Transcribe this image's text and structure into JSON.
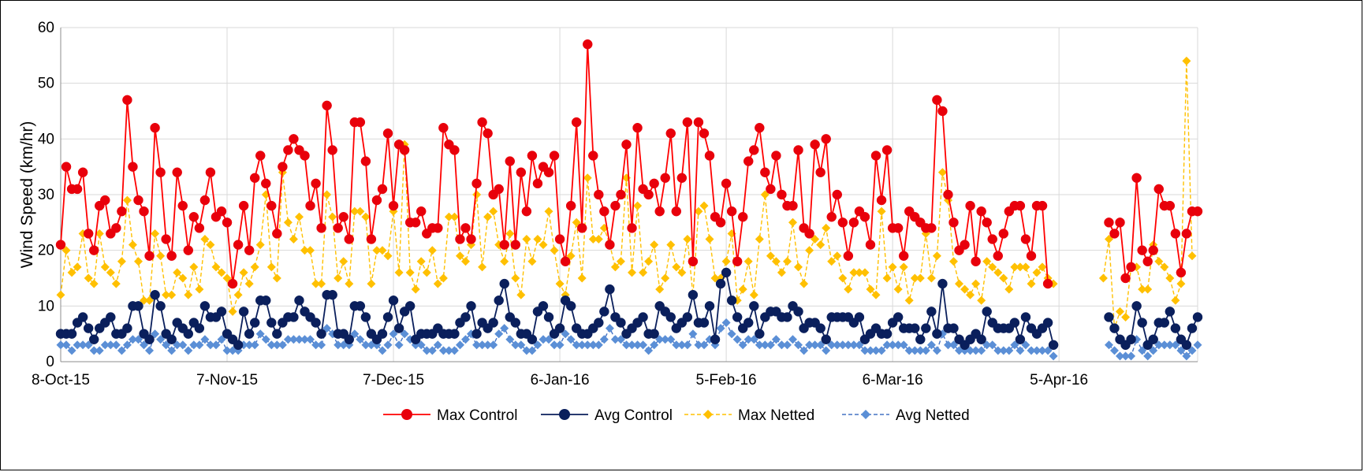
{
  "chart_data": {
    "type": "line",
    "title": "",
    "xlabel": "",
    "ylabel": "Wind Speed (km/hr)",
    "ylim": [
      0,
      60
    ],
    "yticks": [
      0,
      10,
      20,
      30,
      40,
      50,
      60
    ],
    "xlim": [
      "2015-10-08",
      "2016-04-30"
    ],
    "xticks": [
      {
        "date": "2015-10-08",
        "label": "8-Oct-15"
      },
      {
        "date": "2015-11-07",
        "label": "7-Nov-15"
      },
      {
        "date": "2015-12-07",
        "label": "7-Dec-15"
      },
      {
        "date": "2016-01-06",
        "label": "6-Jan-16"
      },
      {
        "date": "2016-02-05",
        "label": "5-Feb-16"
      },
      {
        "date": "2016-03-06",
        "label": "6-Mar-16"
      },
      {
        "date": "2016-04-05",
        "label": "5-Apr-16"
      }
    ],
    "grid": "vertical at x ticks, horizontal at y ticks",
    "legend_position": "bottom",
    "start_date": "2015-10-08",
    "series": [
      {
        "name": "Max Control",
        "color": "#ff0000",
        "marker_color": "#e8000b",
        "line_style": "solid",
        "marker": "circle",
        "segments": [
          {
            "start": "2015-10-08",
            "values": [
              21,
              35,
              31,
              31,
              34,
              23,
              20,
              28,
              29,
              23,
              24,
              27,
              47,
              35,
              29,
              27,
              19,
              42,
              34,
              22,
              19,
              34,
              28,
              20,
              26,
              24,
              29,
              34,
              26,
              27,
              25,
              14,
              21,
              28,
              20,
              33,
              37,
              32,
              28,
              23,
              35,
              38,
              40,
              38,
              37,
              28,
              32,
              24,
              46,
              38,
              24,
              26,
              22,
              43,
              43,
              36,
              22,
              29,
              31,
              41,
              28,
              39,
              38,
              25,
              25,
              27,
              23,
              24,
              24,
              42,
              39,
              38,
              22,
              24,
              22,
              32,
              43,
              41,
              30,
              31,
              21,
              36,
              21,
              34,
              27,
              37,
              32,
              35,
              34,
              37,
              22,
              18,
              28,
              43,
              24,
              57,
              37,
              30,
              27,
              21,
              28,
              30,
              39,
              24,
              42,
              31,
              30,
              32,
              27,
              33,
              41,
              27,
              33,
              43,
              18,
              43,
              41,
              37,
              26,
              25,
              32,
              27,
              18,
              26,
              36,
              38,
              42,
              34,
              31,
              37,
              30,
              28,
              28,
              38,
              24,
              23,
              39,
              34,
              40,
              26,
              30,
              25,
              19,
              25,
              27,
              26,
              21,
              37,
              29,
              38,
              24,
              24,
              19,
              27,
              26,
              25,
              24,
              24,
              47,
              45,
              30,
              25,
              20,
              21,
              28,
              18,
              27,
              25,
              22,
              19,
              23,
              27,
              28,
              28,
              22,
              19,
              28,
              28,
              14
            ]
          },
          {
            "start": "2016-04-14",
            "values": [
              25,
              23,
              25,
              15,
              17,
              33,
              20,
              18,
              20,
              31,
              28,
              28,
              23,
              16,
              23,
              27,
              27
            ]
          }
        ]
      },
      {
        "name": "Avg Control",
        "color": "#0a1f5c",
        "marker_color": "#0a1f5c",
        "line_style": "solid",
        "marker": "circle",
        "segments": [
          {
            "start": "2015-10-08",
            "values": [
              5,
              5,
              5,
              7,
              8,
              6,
              4,
              6,
              7,
              8,
              5,
              5,
              6,
              10,
              10,
              5,
              4,
              12,
              10,
              5,
              4,
              7,
              6,
              5,
              7,
              6,
              10,
              8,
              8,
              9,
              5,
              4,
              3,
              9,
              5,
              7,
              11,
              11,
              7,
              5,
              7,
              8,
              8,
              11,
              9,
              8,
              7,
              5,
              12,
              12,
              5,
              5,
              4,
              10,
              10,
              8,
              5,
              4,
              5,
              8,
              11,
              6,
              9,
              10,
              4,
              5,
              5,
              5,
              6,
              5,
              5,
              5,
              7,
              8,
              10,
              5,
              7,
              6,
              7,
              11,
              14,
              8,
              7,
              5,
              5,
              4,
              9,
              10,
              8,
              5,
              6,
              11,
              10,
              6,
              5,
              5,
              6,
              7,
              9,
              13,
              8,
              7,
              5,
              6,
              7,
              8,
              5,
              5,
              10,
              9,
              8,
              6,
              7,
              8,
              12,
              7,
              7,
              10,
              4,
              14,
              16,
              11,
              8,
              6,
              7,
              10,
              5,
              8,
              9,
              9,
              8,
              8,
              10,
              9,
              6,
              7,
              7,
              6,
              4,
              8,
              8,
              8,
              8,
              7,
              8,
              4,
              5,
              6,
              5,
              5,
              7,
              8,
              6,
              6,
              6,
              4,
              6,
              9,
              5,
              14,
              6,
              6,
              4,
              3,
              4,
              5,
              4,
              9,
              7,
              6,
              6,
              6,
              7,
              4,
              8,
              6,
              5,
              6,
              7,
              3
            ]
          },
          {
            "start": "2016-04-14",
            "values": [
              8,
              6,
              4,
              3,
              4,
              10,
              7,
              3,
              4,
              7,
              7,
              9,
              6,
              4,
              3,
              6,
              8
            ]
          }
        ]
      },
      {
        "name": "Max Netted",
        "color": "#ffc000",
        "marker_color": "#ffc000",
        "line_style": "dashed",
        "marker": "diamond",
        "segments": [
          {
            "start": "2015-10-08",
            "values": [
              12,
              20,
              16,
              17,
              23,
              15,
              14,
              23,
              17,
              16,
              14,
              18,
              29,
              21,
              18,
              11,
              11,
              23,
              19,
              12,
              12,
              16,
              15,
              12,
              17,
              13,
              22,
              21,
              17,
              16,
              15,
              9,
              12,
              16,
              14,
              17,
              21,
              30,
              17,
              15,
              34,
              25,
              22,
              26,
              20,
              20,
              14,
              14,
              30,
              26,
              15,
              18,
              14,
              27,
              27,
              26,
              14,
              20,
              20,
              19,
              27,
              16,
              39,
              16,
              13,
              18,
              16,
              20,
              14,
              15,
              26,
              26,
              19,
              18,
              21,
              30,
              17,
              26,
              27,
              21,
              18,
              23,
              15,
              12,
              22,
              18,
              22,
              21,
              27,
              20,
              14,
              12,
              19,
              25,
              15,
              33,
              22,
              22,
              24,
              21,
              17,
              18,
              33,
              16,
              28,
              16,
              18,
              21,
              13,
              15,
              21,
              17,
              16,
              22,
              12,
              27,
              28,
              22,
              15,
              15,
              18,
              23,
              11,
              13,
              18,
              12,
              22,
              30,
              19,
              18,
              16,
              18,
              25,
              17,
              14,
              20,
              22,
              21,
              24,
              18,
              19,
              15,
              13,
              16,
              16,
              16,
              13,
              12,
              27,
              15,
              17,
              13,
              17,
              11,
              15,
              15,
              23,
              15,
              19,
              34,
              29,
              18,
              14,
              13,
              12,
              14,
              11,
              18,
              17,
              16,
              15,
              13,
              17,
              17,
              17,
              14,
              16,
              17,
              15,
              14
            ]
          },
          {
            "start": "2016-04-13",
            "values": [
              15,
              22,
              6,
              9,
              8,
              17,
              17,
              13,
              13,
              21,
              18,
              17,
              15,
              11,
              14,
              54,
              19
            ]
          }
        ]
      },
      {
        "name": "Avg Netted",
        "color": "#4472c4",
        "marker_color": "#5b8fd6",
        "line_style": "dashed",
        "marker": "diamond",
        "segments": [
          {
            "start": "2015-10-08",
            "values": [
              3,
              3,
              2,
              3,
              3,
              3,
              2,
              2,
              3,
              3,
              3,
              2,
              3,
              4,
              4,
              3,
              2,
              5,
              4,
              3,
              2,
              3,
              3,
              2,
              3,
              3,
              4,
              3,
              3,
              4,
              2,
              2,
              2,
              3,
              3,
              3,
              5,
              4,
              3,
              3,
              3,
              4,
              4,
              4,
              4,
              4,
              3,
              3,
              6,
              5,
              3,
              3,
              3,
              5,
              4,
              3,
              3,
              3,
              2,
              3,
              5,
              3,
              5,
              4,
              3,
              3,
              2,
              2,
              3,
              2,
              2,
              2,
              3,
              4,
              5,
              3,
              3,
              3,
              3,
              5,
              6,
              4,
              3,
              3,
              2,
              2,
              3,
              4,
              4,
              3,
              3,
              5,
              4,
              3,
              3,
              3,
              3,
              3,
              4,
              6,
              4,
              4,
              3,
              3,
              3,
              3,
              2,
              3,
              4,
              4,
              4,
              3,
              3,
              3,
              5,
              3,
              3,
              4,
              3,
              6,
              7,
              5,
              4,
              3,
              4,
              4,
              3,
              3,
              3,
              4,
              3,
              3,
              4,
              3,
              2,
              3,
              3,
              3,
              2,
              3,
              3,
              3,
              3,
              3,
              3,
              2,
              2,
              2,
              2,
              3,
              3,
              3,
              3,
              2,
              2,
              2,
              2,
              3,
              2,
              5,
              3,
              3,
              2,
              2,
              2,
              2,
              2,
              3,
              3,
              2,
              2,
              2,
              3,
              2,
              3,
              2,
              2,
              2,
              2,
              1
            ]
          },
          {
            "start": "2016-04-14",
            "values": [
              3,
              2,
              1,
              1,
              1,
              4,
              2,
              1,
              2,
              3,
              3,
              3,
              3,
              2,
              1,
              2,
              3
            ]
          }
        ]
      }
    ]
  }
}
